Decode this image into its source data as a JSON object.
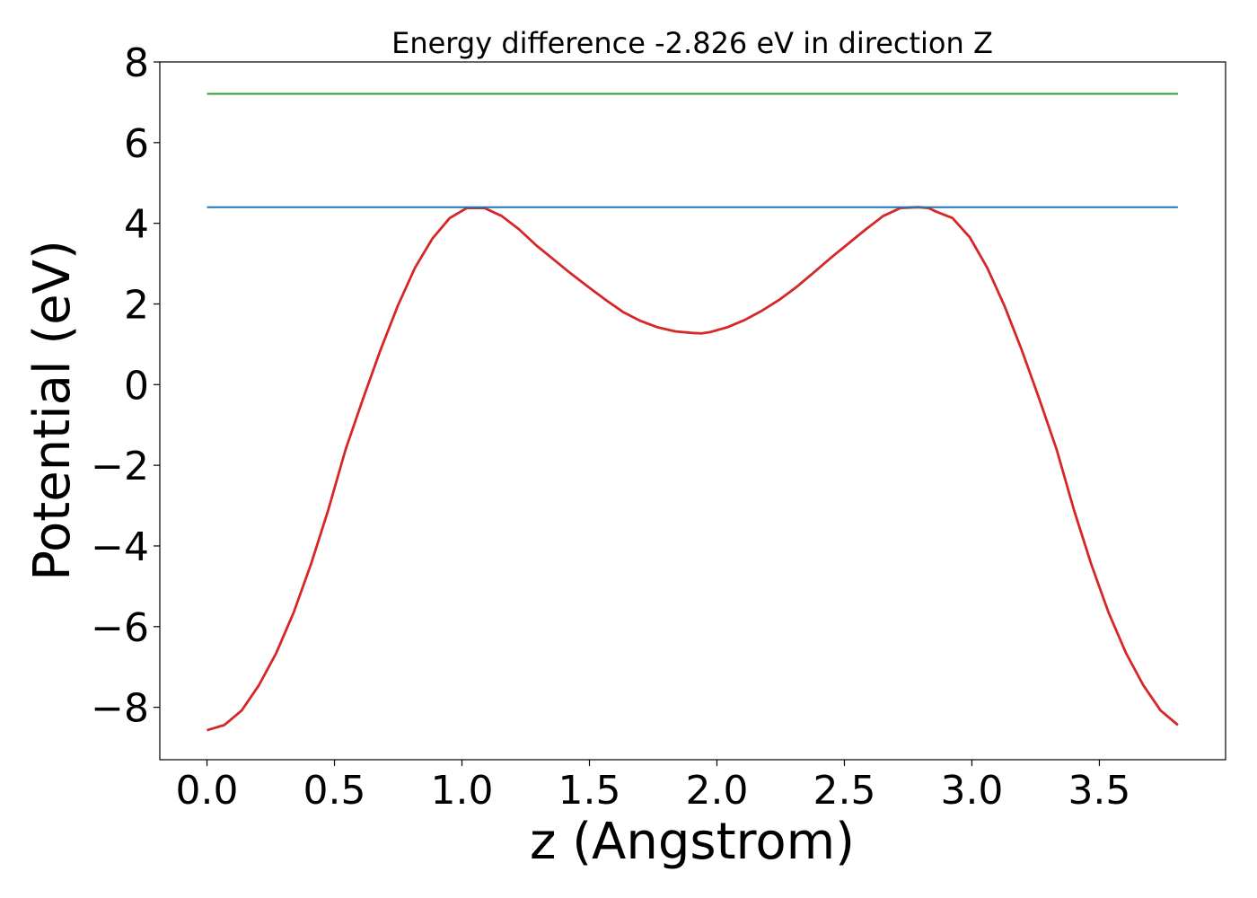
{
  "chart_data": {
    "type": "line",
    "title": "Energy difference -2.826 eV in direction Z",
    "xlabel": "z (Angstrom)",
    "ylabel": "Potential (eV)",
    "xlim": [
      -0.185,
      3.995
    ],
    "ylim": [
      -9.3,
      8.0
    ],
    "xticks": [
      0.0,
      0.5,
      1.0,
      1.5,
      2.0,
      2.5,
      3.0,
      3.5
    ],
    "xtick_labels": [
      "0.0",
      "0.5",
      "1.0",
      "1.5",
      "2.0",
      "2.5",
      "3.0",
      "3.5"
    ],
    "yticks": [
      -8,
      -6,
      -4,
      -2,
      0,
      2,
      4,
      6,
      8
    ],
    "ytick_labels": [
      "−8",
      "−6",
      "−4",
      "−2",
      "0",
      "2",
      "4",
      "6",
      "8"
    ],
    "grid": false,
    "series": [
      {
        "color": "#d62728",
        "x": [
          0.0,
          0.068,
          0.136,
          0.204,
          0.272,
          0.34,
          0.408,
          0.476,
          0.544,
          0.612,
          0.68,
          0.748,
          0.816,
          0.884,
          0.952,
          1.02,
          1.088,
          1.156,
          1.224,
          1.292,
          1.36,
          1.428,
          1.496,
          1.564,
          1.632,
          1.7,
          1.768,
          1.836,
          1.904,
          1.94,
          1.972,
          2.04,
          2.108,
          2.176,
          2.244,
          2.312,
          2.38,
          2.448,
          2.516,
          2.584,
          2.652,
          2.72,
          2.788,
          2.83,
          2.856,
          2.924,
          2.992,
          3.06,
          3.128,
          3.196,
          3.264,
          3.332,
          3.4,
          3.468,
          3.536,
          3.604,
          3.672,
          3.74,
          3.808
        ],
        "y": [
          -8.57,
          -8.44,
          -8.08,
          -7.45,
          -6.65,
          -5.65,
          -4.45,
          -3.1,
          -1.6,
          -0.35,
          0.85,
          1.95,
          2.9,
          3.62,
          4.13,
          4.38,
          4.38,
          4.18,
          3.85,
          3.45,
          3.1,
          2.75,
          2.42,
          2.1,
          1.8,
          1.58,
          1.42,
          1.32,
          1.28,
          1.27,
          1.3,
          1.42,
          1.6,
          1.83,
          2.1,
          2.42,
          2.78,
          3.15,
          3.5,
          3.85,
          4.18,
          4.38,
          4.4,
          4.38,
          4.3,
          4.13,
          3.65,
          2.9,
          1.95,
          0.85,
          -0.35,
          -1.6,
          -3.1,
          -4.45,
          -5.65,
          -6.65,
          -7.45,
          -8.08,
          -8.44
        ]
      },
      {
        "color": "#1f77b4",
        "x": [
          0.0,
          3.808
        ],
        "y": [
          4.4,
          4.4
        ]
      },
      {
        "color": "#2ca02c",
        "x": [
          0.0,
          3.808
        ],
        "y": [
          7.21,
          7.21
        ]
      }
    ]
  }
}
